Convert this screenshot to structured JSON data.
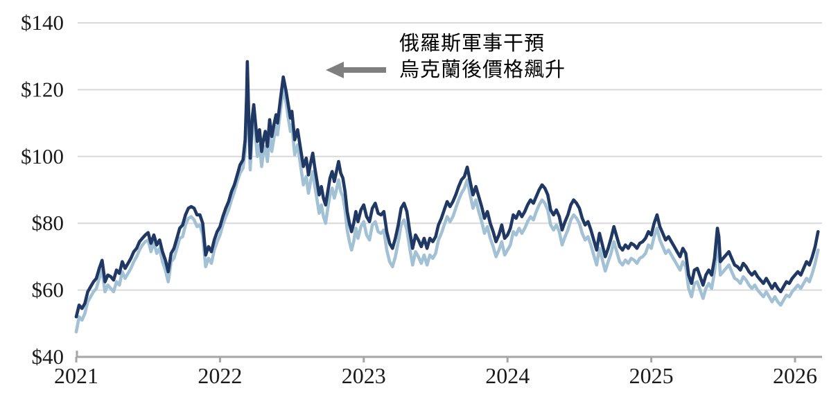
{
  "page": {
    "background": "#ffffff"
  },
  "annotation": {
    "line1": "俄羅斯軍事干預",
    "line2": "烏克蘭後價格飆升",
    "arrow_color": "#7f7f7f"
  },
  "chart_data": {
    "type": "line",
    "title": "",
    "xlabel": "",
    "ylabel": "",
    "legend": "none",
    "grid": "horizontal",
    "style": {
      "gridline_color": "#d9d9d9",
      "axis_color": "#a6a6a6",
      "label_color": "#1a1a1a",
      "line_width": 4.6
    },
    "x_axis": {
      "ticks": [
        2021,
        2022,
        2023,
        2024,
        2025,
        2026
      ],
      "labels": [
        "2021",
        "2022",
        "2023",
        "2024",
        "2025",
        "2026"
      ],
      "range": [
        2021.0,
        2026.2
      ]
    },
    "y_axis": {
      "ticks": [
        40,
        60,
        80,
        100,
        120,
        140
      ],
      "labels": [
        "$40",
        "$60",
        "$80",
        "$100",
        "$120",
        "$140"
      ],
      "range": [
        40,
        140
      ]
    },
    "series": [
      {
        "name": "dark-navy-series",
        "color": "#1f3864",
        "point_index": 1
      },
      {
        "name": "light-blue-series",
        "color": "#a3c1d5",
        "point_index": 2
      }
    ],
    "points": [
      [
        2021.0,
        52,
        47.5
      ],
      [
        2021.02,
        55.5,
        52
      ],
      [
        2021.04,
        54.5,
        51
      ],
      [
        2021.06,
        56,
        53
      ],
      [
        2021.08,
        59.5,
        56.5
      ],
      [
        2021.1,
        61,
        58
      ],
      [
        2021.12,
        62.5,
        59.5
      ],
      [
        2021.14,
        63.5,
        60.5
      ],
      [
        2021.16,
        66.5,
        63.5
      ],
      [
        2021.18,
        68.9,
        66
      ],
      [
        2021.2,
        62.5,
        59.5
      ],
      [
        2021.22,
        64.5,
        61.5
      ],
      [
        2021.24,
        64,
        60.5
      ],
      [
        2021.26,
        63,
        59.5
      ],
      [
        2021.28,
        66,
        62.5
      ],
      [
        2021.3,
        65,
        61.5
      ],
      [
        2021.32,
        68.5,
        65.5
      ],
      [
        2021.34,
        66.5,
        63.5
      ],
      [
        2021.36,
        68,
        65
      ],
      [
        2021.38,
        69.5,
        66.5
      ],
      [
        2021.4,
        71.5,
        68.5
      ],
      [
        2021.42,
        72.5,
        70
      ],
      [
        2021.44,
        74.5,
        72
      ],
      [
        2021.46,
        75.5,
        73.5
      ],
      [
        2021.48,
        76.5,
        74.5
      ],
      [
        2021.5,
        77.2,
        75
      ],
      [
        2021.52,
        74,
        71.5
      ],
      [
        2021.54,
        76.5,
        74.5
      ],
      [
        2021.56,
        73.5,
        71
      ],
      [
        2021.58,
        75,
        72.5
      ],
      [
        2021.6,
        71.5,
        68.5
      ],
      [
        2021.62,
        69,
        66
      ],
      [
        2021.64,
        65.5,
        62.5
      ],
      [
        2021.66,
        71,
        68.5
      ],
      [
        2021.68,
        72.5,
        69.5
      ],
      [
        2021.7,
        75.5,
        72.5
      ],
      [
        2021.72,
        78.5,
        75.5
      ],
      [
        2021.74,
        79.5,
        76
      ],
      [
        2021.76,
        82.5,
        79.5
      ],
      [
        2021.78,
        84.5,
        81.5
      ],
      [
        2021.8,
        85,
        82
      ],
      [
        2021.82,
        84.5,
        81
      ],
      [
        2021.84,
        82.5,
        79
      ],
      [
        2021.86,
        82.5,
        79.5
      ],
      [
        2021.88,
        80,
        76.5
      ],
      [
        2021.9,
        70.5,
        67
      ],
      [
        2021.92,
        73,
        69.5
      ],
      [
        2021.94,
        71.5,
        68
      ],
      [
        2021.96,
        75,
        72
      ],
      [
        2021.98,
        77.5,
        74.5
      ],
      [
        2022.0,
        79,
        76.5
      ],
      [
        2022.02,
        82,
        79.5
      ],
      [
        2022.04,
        84.5,
        82
      ],
      [
        2022.06,
        86.5,
        84
      ],
      [
        2022.08,
        89.5,
        87
      ],
      [
        2022.1,
        91.5,
        89.5
      ],
      [
        2022.12,
        94.5,
        92.5
      ],
      [
        2022.14,
        97.5,
        95
      ],
      [
        2022.16,
        99,
        96.5
      ],
      [
        2022.175,
        105,
        101.5
      ],
      [
        2022.185,
        118,
        114
      ],
      [
        2022.19,
        128.4,
        124.2
      ],
      [
        2022.2,
        112,
        108
      ],
      [
        2022.21,
        99.5,
        96
      ],
      [
        2022.225,
        112,
        108.5
      ],
      [
        2022.235,
        115.5,
        111.5
      ],
      [
        2022.25,
        108.5,
        104.5
      ],
      [
        2022.26,
        104.5,
        100
      ],
      [
        2022.275,
        108,
        103.5
      ],
      [
        2022.29,
        101.5,
        97
      ],
      [
        2022.3,
        104.5,
        100.5
      ],
      [
        2022.315,
        107.5,
        103
      ],
      [
        2022.33,
        103,
        98.5
      ],
      [
        2022.345,
        111,
        106.5
      ],
      [
        2022.36,
        106,
        101.5
      ],
      [
        2022.375,
        109.5,
        105.5
      ],
      [
        2022.39,
        112.5,
        109
      ],
      [
        2022.4,
        110,
        106.5
      ],
      [
        2022.42,
        117,
        113.5
      ],
      [
        2022.44,
        123.8,
        120.5
      ],
      [
        2022.46,
        119.5,
        116
      ],
      [
        2022.475,
        115.5,
        111.5
      ],
      [
        2022.49,
        111.5,
        107.5
      ],
      [
        2022.5,
        113.5,
        109.5
      ],
      [
        2022.52,
        105,
        100.5
      ],
      [
        2022.54,
        108,
        103.5
      ],
      [
        2022.56,
        102.5,
        97.5
      ],
      [
        2022.58,
        97,
        91.5
      ],
      [
        2022.6,
        99.5,
        94
      ],
      [
        2022.615,
        94.5,
        89
      ],
      [
        2022.63,
        98,
        92.5
      ],
      [
        2022.645,
        101,
        95.5
      ],
      [
        2022.66,
        96.5,
        91
      ],
      [
        2022.675,
        92.5,
        87
      ],
      [
        2022.69,
        88.5,
        83
      ],
      [
        2022.705,
        91,
        85.5
      ],
      [
        2022.72,
        87.5,
        82
      ],
      [
        2022.735,
        85.5,
        80
      ],
      [
        2022.75,
        89.5,
        84.5
      ],
      [
        2022.765,
        93.5,
        88.5
      ],
      [
        2022.78,
        95.5,
        90.5
      ],
      [
        2022.795,
        92.5,
        87.5
      ],
      [
        2022.81,
        95.5,
        90
      ],
      [
        2022.825,
        98.5,
        93
      ],
      [
        2022.84,
        95,
        89.5
      ],
      [
        2022.855,
        93.5,
        88
      ],
      [
        2022.87,
        89.5,
        84
      ],
      [
        2022.885,
        83.5,
        78
      ],
      [
        2022.9,
        80,
        74.5
      ],
      [
        2022.915,
        77.5,
        72
      ],
      [
        2022.93,
        80,
        74.5
      ],
      [
        2022.945,
        83.5,
        78.5
      ],
      [
        2022.96,
        80.5,
        75.5
      ],
      [
        2022.98,
        84,
        79
      ],
      [
        2023.0,
        85.5,
        80.5
      ],
      [
        2023.02,
        82,
        76.5
      ],
      [
        2023.04,
        80.5,
        75
      ],
      [
        2023.06,
        84.5,
        79.5
      ],
      [
        2023.08,
        86,
        80.5
      ],
      [
        2023.1,
        83,
        77.5
      ],
      [
        2023.12,
        82.5,
        77
      ],
      [
        2023.14,
        83.5,
        78
      ],
      [
        2023.16,
        77.5,
        72
      ],
      [
        2023.18,
        74,
        68.5
      ],
      [
        2023.2,
        72.5,
        67
      ],
      [
        2023.22,
        75.5,
        70
      ],
      [
        2023.24,
        79.5,
        74.5
      ],
      [
        2023.26,
        84.5,
        79.5
      ],
      [
        2023.28,
        86,
        81
      ],
      [
        2023.3,
        83.5,
        78
      ],
      [
        2023.32,
        77.5,
        72.5
      ],
      [
        2023.34,
        72.5,
        67.5
      ],
      [
        2023.36,
        76.5,
        71.5
      ],
      [
        2023.38,
        75,
        70
      ],
      [
        2023.4,
        73,
        68
      ],
      [
        2023.42,
        75.5,
        70.5
      ],
      [
        2023.44,
        72.5,
        67.5
      ],
      [
        2023.46,
        75.5,
        70.5
      ],
      [
        2023.48,
        74.5,
        69.5
      ],
      [
        2023.5,
        76,
        71
      ],
      [
        2023.52,
        79.5,
        75
      ],
      [
        2023.54,
        81.5,
        77
      ],
      [
        2023.56,
        84,
        79.5
      ],
      [
        2023.58,
        86.5,
        82
      ],
      [
        2023.6,
        85,
        80.5
      ],
      [
        2023.62,
        86.5,
        82
      ],
      [
        2023.64,
        88.5,
        84.5
      ],
      [
        2023.66,
        91,
        87
      ],
      [
        2023.68,
        93,
        89
      ],
      [
        2023.7,
        94,
        90.5
      ],
      [
        2023.72,
        96.8,
        93
      ],
      [
        2023.74,
        92.5,
        88.5
      ],
      [
        2023.76,
        88.5,
        84.5
      ],
      [
        2023.78,
        91,
        87
      ],
      [
        2023.8,
        88,
        83.5
      ],
      [
        2023.82,
        85,
        80.5
      ],
      [
        2023.84,
        81.5,
        77
      ],
      [
        2023.86,
        83.5,
        79
      ],
      [
        2023.88,
        80,
        75.5
      ],
      [
        2023.9,
        77.5,
        73
      ],
      [
        2023.92,
        74.5,
        70
      ],
      [
        2023.94,
        76.5,
        72
      ],
      [
        2023.96,
        79.5,
        74.5
      ],
      [
        2023.98,
        75.5,
        70.5
      ],
      [
        2024.0,
        76.5,
        72
      ],
      [
        2024.02,
        78.5,
        73.5
      ],
      [
        2024.04,
        82.5,
        77.5
      ],
      [
        2024.06,
        81.5,
        76.5
      ],
      [
        2024.08,
        83.5,
        78.5
      ],
      [
        2024.1,
        82,
        77
      ],
      [
        2024.12,
        83.5,
        78.5
      ],
      [
        2024.14,
        85.5,
        80.5
      ],
      [
        2024.16,
        87,
        82
      ],
      [
        2024.18,
        86,
        81
      ],
      [
        2024.2,
        88,
        83.5
      ],
      [
        2024.22,
        90,
        85.5
      ],
      [
        2024.24,
        91.5,
        87
      ],
      [
        2024.26,
        90.5,
        86
      ],
      [
        2024.28,
        88.5,
        84
      ],
      [
        2024.3,
        84,
        79.5
      ],
      [
        2024.32,
        82.5,
        78
      ],
      [
        2024.34,
        84,
        79.5
      ],
      [
        2024.36,
        82,
        77.5
      ],
      [
        2024.38,
        78,
        73.5
      ],
      [
        2024.4,
        80.5,
        76
      ],
      [
        2024.42,
        82.5,
        78
      ],
      [
        2024.44,
        85.5,
        81
      ],
      [
        2024.46,
        87,
        82.5
      ],
      [
        2024.48,
        86,
        81.5
      ],
      [
        2024.5,
        84.5,
        80
      ],
      [
        2024.52,
        81.5,
        77
      ],
      [
        2024.54,
        79.5,
        75
      ],
      [
        2024.56,
        80.5,
        76
      ],
      [
        2024.58,
        78,
        73.5
      ],
      [
        2024.6,
        75,
        70.5
      ],
      [
        2024.62,
        72,
        67.5
      ],
      [
        2024.64,
        77,
        72.5
      ],
      [
        2024.66,
        73.5,
        69
      ],
      [
        2024.68,
        70,
        65.7
      ],
      [
        2024.7,
        72.5,
        68.5
      ],
      [
        2024.72,
        75.5,
        71
      ],
      [
        2024.74,
        79,
        74.5
      ],
      [
        2024.76,
        76,
        71.5
      ],
      [
        2024.78,
        73,
        68.5
      ],
      [
        2024.8,
        72,
        67.5
      ],
      [
        2024.82,
        73.5,
        69
      ],
      [
        2024.84,
        72.5,
        68
      ],
      [
        2024.86,
        74,
        69.5
      ],
      [
        2024.88,
        73.5,
        69
      ],
      [
        2024.9,
        72.5,
        68
      ],
      [
        2024.92,
        74,
        69.5
      ],
      [
        2024.94,
        74.5,
        70
      ],
      [
        2024.96,
        75.5,
        71
      ],
      [
        2024.98,
        77.5,
        73.5
      ],
      [
        2025.0,
        76.5,
        72.5
      ],
      [
        2025.02,
        80,
        76
      ],
      [
        2025.04,
        82.5,
        78.5
      ],
      [
        2025.06,
        79,
        75
      ],
      [
        2025.08,
        77,
        73
      ],
      [
        2025.1,
        75,
        71
      ],
      [
        2025.12,
        76,
        72
      ],
      [
        2025.14,
        74.5,
        70.5
      ],
      [
        2025.16,
        73,
        69
      ],
      [
        2025.18,
        71.5,
        67.5
      ],
      [
        2025.2,
        70,
        66
      ],
      [
        2025.22,
        72.5,
        68.5
      ],
      [
        2025.24,
        71,
        67
      ],
      [
        2025.26,
        64.5,
        60.5
      ],
      [
        2025.28,
        62,
        58
      ],
      [
        2025.3,
        66,
        62
      ],
      [
        2025.32,
        66.5,
        62.5
      ],
      [
        2025.34,
        64,
        60
      ],
      [
        2025.36,
        61.5,
        57.5
      ],
      [
        2025.38,
        64.5,
        60.5
      ],
      [
        2025.4,
        66,
        62
      ],
      [
        2025.42,
        64.5,
        60.5
      ],
      [
        2025.44,
        69.5,
        65.5
      ],
      [
        2025.46,
        78.5,
        74
      ],
      [
        2025.47,
        76,
        71.5
      ],
      [
        2025.48,
        68.5,
        64.5
      ],
      [
        2025.5,
        69.5,
        65.5
      ],
      [
        2025.52,
        70.5,
        66.5
      ],
      [
        2025.54,
        71.5,
        67.5
      ],
      [
        2025.56,
        69.5,
        65.5
      ],
      [
        2025.58,
        67.5,
        63.5
      ],
      [
        2025.6,
        67,
        63
      ],
      [
        2025.62,
        66,
        62
      ],
      [
        2025.64,
        68,
        64
      ],
      [
        2025.66,
        67,
        63
      ],
      [
        2025.68,
        65.5,
        61.5
      ],
      [
        2025.7,
        64.5,
        60.5
      ],
      [
        2025.72,
        65.5,
        61.5
      ],
      [
        2025.74,
        64,
        60
      ],
      [
        2025.76,
        63,
        59
      ],
      [
        2025.78,
        62,
        58
      ],
      [
        2025.8,
        63.5,
        59.5
      ],
      [
        2025.82,
        62,
        58
      ],
      [
        2025.84,
        60.5,
        56.5
      ],
      [
        2025.86,
        62,
        58
      ],
      [
        2025.88,
        60.5,
        56.5
      ],
      [
        2025.9,
        59.5,
        55.5
      ],
      [
        2025.92,
        61,
        57
      ],
      [
        2025.94,
        62.5,
        58.5
      ],
      [
        2025.96,
        62,
        58
      ],
      [
        2025.98,
        63.5,
        59.5
      ],
      [
        2026.0,
        64.5,
        60.5
      ],
      [
        2026.02,
        65.5,
        61.5
      ],
      [
        2026.04,
        64.5,
        60.5
      ],
      [
        2026.06,
        66.5,
        62
      ],
      [
        2026.08,
        68.5,
        63.5
      ],
      [
        2026.1,
        67.5,
        62.5
      ],
      [
        2026.12,
        70,
        65
      ],
      [
        2026.14,
        73,
        68
      ],
      [
        2026.16,
        77.5,
        72
      ]
    ]
  }
}
